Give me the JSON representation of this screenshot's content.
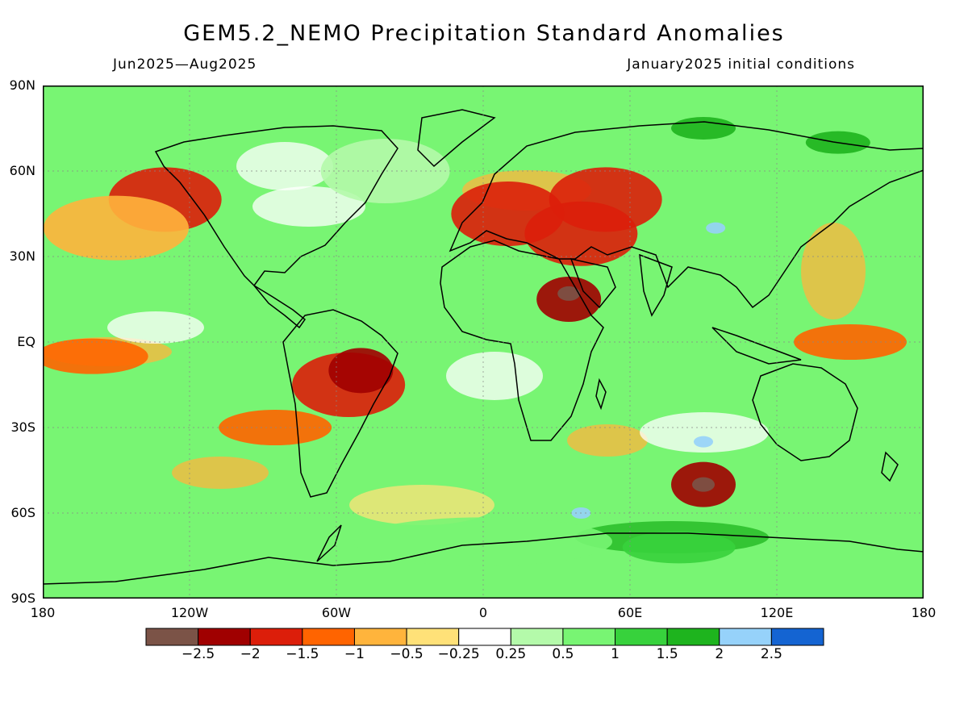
{
  "header": {
    "title": "GEM5.2_NEMO Precipitation Standard Anomalies",
    "period": "Jun2025—Aug2025",
    "initial_conditions": "January2025 initial conditions"
  },
  "axes": {
    "lat_ticks": [
      "90N",
      "60N",
      "30N",
      "EQ",
      "30S",
      "60S",
      "90S"
    ],
    "lon_ticks": [
      "180",
      "120W",
      "60W",
      "0",
      "60E",
      "120E",
      "180"
    ]
  },
  "legend": {
    "colors": [
      "#7b5347",
      "#a00000",
      "#dc1e0a",
      "#ff6400",
      "#ffb43c",
      "#ffe178",
      "#ffffff",
      "#b4faaa",
      "#78f573",
      "#37d23c",
      "#1eb41e",
      "#96d2fa",
      "#1464d2"
    ],
    "labels": [
      "−2.5",
      "−2",
      "−1.5",
      "−1",
      "−0.5",
      "−0.25",
      "0.25",
      "0.5",
      "1",
      "1.5",
      "2",
      "2.5"
    ]
  },
  "map_features": {
    "anomaly_regions": [
      {
        "lon": -55,
        "lat": -15,
        "category": "-1.5"
      },
      {
        "lon": -50,
        "lat": -10,
        "category": "-2"
      },
      {
        "lon": 50,
        "lat": 50,
        "category": "-1.5"
      },
      {
        "lon": 40,
        "lat": 38,
        "category": "-1.5"
      },
      {
        "lon": 35,
        "lat": 15,
        "category": "-2"
      },
      {
        "lon": 35,
        "lat": 17,
        "category": "-2.5"
      },
      {
        "lon": 90,
        "lat": -50,
        "category": "-2"
      },
      {
        "lon": 90,
        "lat": -50,
        "category": "-2.5"
      },
      {
        "lon": 150,
        "lat": 0,
        "category": "-1"
      },
      {
        "lon": -160,
        "lat": -5,
        "category": "-1"
      },
      {
        "lon": -85,
        "lat": -30,
        "category": "-1"
      },
      {
        "lon": 10,
        "lat": 45,
        "category": "-1.5"
      },
      {
        "lon": -130,
        "lat": 50,
        "category": "-1.5"
      },
      {
        "lon": 95,
        "lat": 40,
        "category": "2.5"
      },
      {
        "lon": 40,
        "lat": -60,
        "category": "2.5"
      },
      {
        "lon": 90,
        "lat": -35,
        "category": "2.5"
      },
      {
        "lon": 145,
        "lat": 70,
        "category": "2"
      },
      {
        "lon": 90,
        "lat": 75,
        "category": "2"
      },
      {
        "lon": 0,
        "lat": -70,
        "category": "1"
      },
      {
        "lon": 80,
        "lat": -72,
        "category": "1.5"
      },
      {
        "lon": -150,
        "lat": 40,
        "category": "-0.5"
      },
      {
        "lon": -40,
        "lat": 60,
        "category": "0.5"
      }
    ]
  }
}
